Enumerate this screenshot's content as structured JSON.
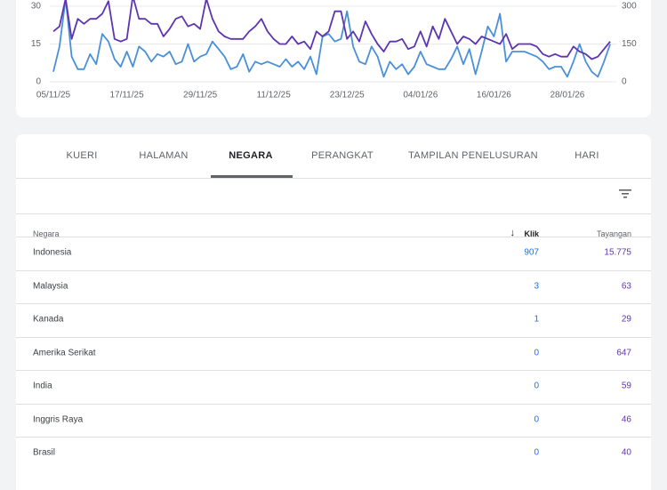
{
  "chart_data": {
    "type": "line",
    "categories": [
      "05/11/25",
      null,
      null,
      null,
      null,
      null,
      null,
      null,
      null,
      null,
      null,
      null,
      "17/11/25",
      null,
      null,
      null,
      null,
      null,
      null,
      null,
      null,
      null,
      null,
      null,
      "29/11/25",
      null,
      null,
      null,
      null,
      null,
      null,
      null,
      null,
      null,
      null,
      null,
      "11/12/25",
      null,
      null,
      null,
      null,
      null,
      null,
      null,
      null,
      null,
      null,
      null,
      "23/12/25",
      null,
      null,
      null,
      null,
      null,
      null,
      null,
      null,
      null,
      null,
      null,
      "04/01/26",
      null,
      null,
      null,
      null,
      null,
      null,
      null,
      null,
      null,
      null,
      null,
      "16/01/26",
      null,
      null,
      null,
      null,
      null,
      null,
      null,
      null,
      null,
      null,
      null,
      "28/01/26",
      null,
      null,
      null,
      null,
      null,
      null,
      null
    ],
    "series": [
      {
        "color": "#4a90d9",
        "values": [
          4,
          14,
          33,
          10,
          5,
          5,
          11,
          7,
          19,
          16,
          9,
          6,
          12,
          6,
          14,
          12,
          8,
          11,
          10,
          12,
          7,
          8,
          15,
          8,
          10,
          11,
          16,
          13,
          10,
          5,
          6,
          11,
          4,
          8,
          7,
          8,
          7,
          6,
          9,
          6,
          8,
          5,
          10,
          3,
          18,
          19,
          16,
          17,
          28,
          14,
          8,
          7,
          14,
          10,
          2,
          8,
          5,
          7,
          3,
          6,
          12,
          7,
          6,
          5,
          5,
          9,
          14,
          7,
          13,
          3,
          12,
          22,
          18,
          27,
          8,
          12,
          12,
          12,
          11,
          10,
          8,
          5,
          6,
          6,
          2,
          8,
          15,
          8,
          4,
          2,
          8,
          15
        ]
      },
      {
        "color": "#5e35b1",
        "axis": "y2",
        "values": [
          200,
          220,
          330,
          170,
          250,
          230,
          250,
          250,
          270,
          320,
          170,
          160,
          170,
          340,
          250,
          250,
          230,
          230,
          180,
          210,
          250,
          260,
          220,
          230,
          210,
          330,
          250,
          200,
          180,
          170,
          170,
          170,
          200,
          220,
          250,
          200,
          170,
          150,
          150,
          180,
          150,
          160,
          130,
          200,
          180,
          200,
          280,
          280,
          170,
          200,
          160,
          240,
          190,
          150,
          120,
          160,
          160,
          170,
          130,
          140,
          200,
          140,
          220,
          170,
          250,
          200,
          150,
          180,
          170,
          150,
          180,
          170,
          160,
          150,
          190,
          130,
          150,
          150,
          150,
          140,
          110,
          100,
          110,
          100,
          100,
          140,
          120,
          110,
          90,
          100,
          130,
          160
        ]
      }
    ],
    "ylim": [
      0,
      30
    ],
    "yticks": [
      0,
      15,
      30
    ],
    "y2lim": [
      0,
      300
    ],
    "y2ticks": [
      0,
      150,
      300
    ],
    "grid": true
  },
  "tabs": {
    "items": [
      "KUERI",
      "HALAMAN",
      "NEGARA",
      "PERANGKAT",
      "TAMPILAN PENELUSURAN",
      "HARI"
    ],
    "active": 2
  },
  "table": {
    "headers": [
      "Negara",
      "Klik",
      "Tayangan"
    ],
    "rows": [
      [
        "Indonesia",
        "907",
        "15.775"
      ],
      [
        "Malaysia",
        "3",
        "63"
      ],
      [
        "Kanada",
        "1",
        "29"
      ],
      [
        "Amerika Serikat",
        "0",
        "647"
      ],
      [
        "India",
        "0",
        "59"
      ],
      [
        "Inggris Raya",
        "0",
        "46"
      ],
      [
        "Brasil",
        "0",
        "40"
      ]
    ]
  }
}
